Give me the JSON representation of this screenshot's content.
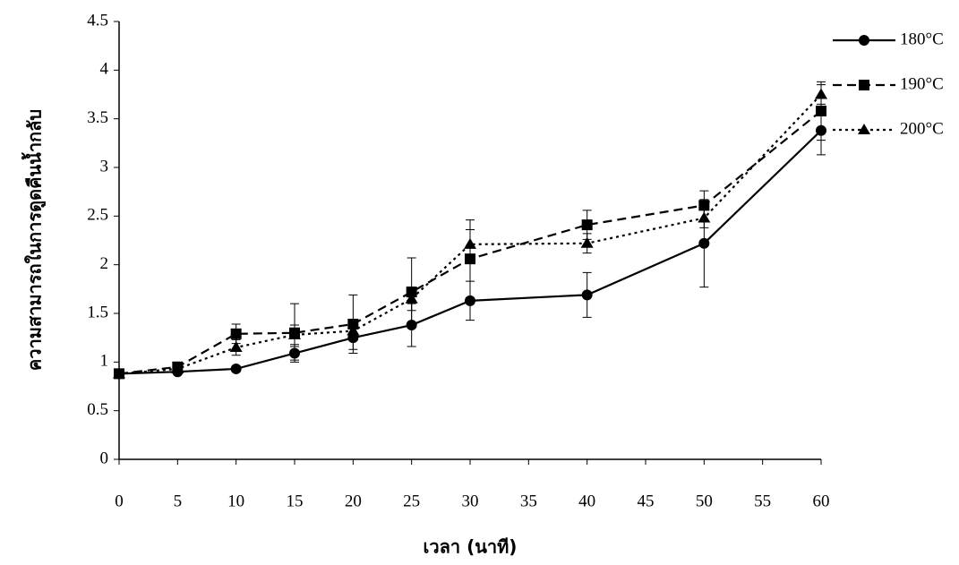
{
  "chart_data": {
    "type": "line",
    "x_label": "เวลา (นาที)",
    "y_label": "ความสามารถในการดูดคืนน้ำกลับ",
    "x": [
      0,
      5,
      10,
      15,
      20,
      25,
      30,
      40,
      50,
      60
    ],
    "series": [
      {
        "name": "180°C",
        "color": "#000000",
        "dash": "solid",
        "marker": "circle",
        "values": [
          0.88,
          0.9,
          0.93,
          1.09,
          1.25,
          1.38,
          1.63,
          1.69,
          2.22,
          3.38
        ],
        "errors": [
          0.02,
          0.02,
          0.02,
          0.07,
          0.12,
          0.22,
          0.2,
          0.23,
          0.45,
          0.25
        ]
      },
      {
        "name": "190°C",
        "color": "#000000",
        "dash": "dashed",
        "marker": "square",
        "values": [
          0.88,
          0.95,
          1.29,
          1.3,
          1.39,
          1.72,
          2.06,
          2.41,
          2.61,
          3.58
        ],
        "errors": [
          0.02,
          0.04,
          0.1,
          0.3,
          0.3,
          0.35,
          0.4,
          0.15,
          0.15,
          0.3
        ]
      },
      {
        "name": "200°C",
        "color": "#000000",
        "dash": "dotted",
        "marker": "triangle",
        "values": [
          0.88,
          0.93,
          1.15,
          1.28,
          1.32,
          1.65,
          2.21,
          2.22,
          2.48,
          3.75
        ],
        "errors": [
          0.02,
          0.03,
          0.08,
          0.1,
          0.1,
          0.12,
          0.15,
          0.1,
          0.1,
          0.1
        ]
      }
    ],
    "xlim": [
      0,
      60
    ],
    "xticks": [
      0,
      5,
      10,
      15,
      20,
      25,
      30,
      35,
      40,
      45,
      50,
      55,
      60
    ],
    "ylim": [
      0,
      4.5
    ],
    "yticks": [
      0,
      0.5,
      1,
      1.5,
      2,
      2.5,
      3,
      3.5,
      4,
      4.5
    ],
    "grid": false,
    "legend": "right"
  }
}
